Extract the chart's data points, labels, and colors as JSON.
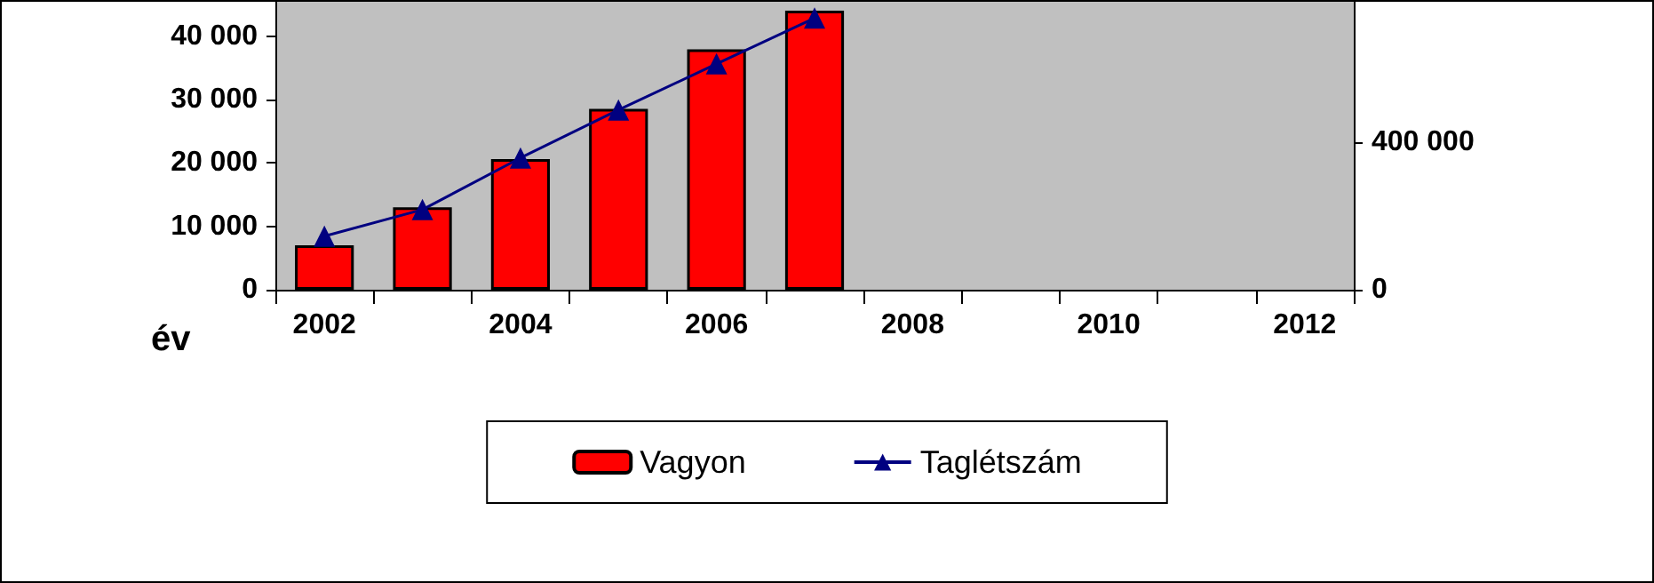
{
  "chart_data": {
    "type": "bar",
    "categories": [
      "2002",
      null,
      "2004",
      null,
      "2006",
      null,
      "2008",
      null,
      "2010",
      null,
      "2012"
    ],
    "series": [
      {
        "name": "Vagyon",
        "color": "#ff0000",
        "values": [
          7000,
          13000,
          20600,
          28500,
          37900,
          44000,
          null,
          null,
          null,
          null,
          null
        ]
      },
      {
        "name": "Taglétszám",
        "type": "line",
        "axis": "y2",
        "color": "#000080",
        "values": [
          145000,
          217000,
          357000,
          487000,
          612000,
          736000,
          null,
          null,
          null,
          null,
          null
        ]
      }
    ],
    "xlabel": "év",
    "ylim": [
      0,
      45400
    ],
    "yticks": [
      {
        "value": 0,
        "label": "0"
      },
      {
        "value": 10000,
        "label": "10 000"
      },
      {
        "value": 20000,
        "label": "20 000"
      },
      {
        "value": 30000,
        "label": "30 000"
      },
      {
        "value": 40000,
        "label": "40 000"
      }
    ],
    "y2lim": [
      0,
      780000
    ],
    "y2ticks": [
      {
        "value": 0,
        "label": "0"
      },
      {
        "value": 400000,
        "label": "400 000"
      }
    ],
    "marker": "triangle",
    "grid": false,
    "legend": "bottom"
  }
}
